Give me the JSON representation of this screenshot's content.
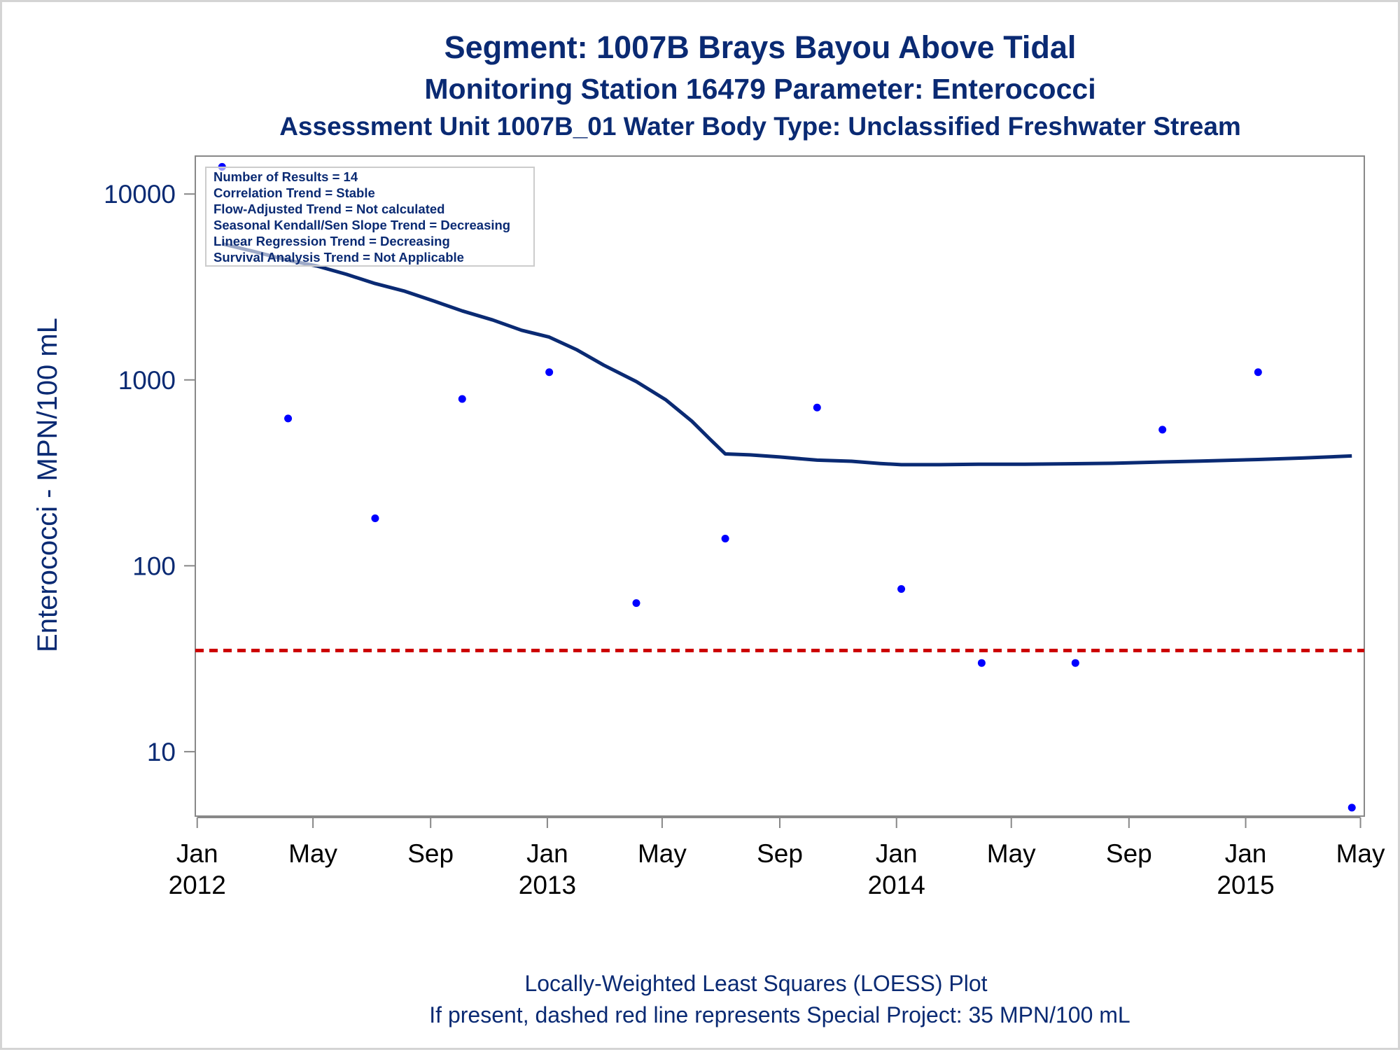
{
  "titles": [
    "Segment: 1007B  Brays Bayou Above Tidal",
    "Monitoring Station 16479 Parameter: Enterococci",
    "Assessment Unit 1007B_01   Water Body Type: Unclassified Freshwater Stream"
  ],
  "stats_box": [
    "Number of Results = 14",
    "Correlation Trend = Stable",
    "Flow-Adjusted Trend = Not calculated",
    "Seasonal Kendall/Sen Slope Trend = Decreasing",
    "Linear Regression Trend = Decreasing",
    "Survival Analysis Trend = Not Applicable"
  ],
  "footnotes": [
    "Locally-Weighted Least Squares (LOESS) Plot",
    "If present, dashed red line represents Special Project: 35 MPN/100 mL"
  ],
  "colors": {
    "title": "#0a2a73",
    "points": "#0000ff",
    "loess": "#0a2a73",
    "reference": "#cc0000",
    "axes": "#888888"
  },
  "chart_data": {
    "type": "scatter",
    "ylabel": "Enterococci - MPN/100 mL",
    "yscale": "log",
    "ylim": [
      4.5,
      16000
    ],
    "xlim": [
      "2011-12-30",
      "2015-05-05"
    ],
    "yticks": [
      {
        "value": 10,
        "label": "10"
      },
      {
        "value": 100,
        "label": "100"
      },
      {
        "value": 1000,
        "label": "1000"
      },
      {
        "value": 10000,
        "label": "10000"
      }
    ],
    "xticks": [
      {
        "date": "2012-01-01",
        "label": [
          "Jan",
          "2012"
        ]
      },
      {
        "date": "2012-05-01",
        "label": [
          "May"
        ]
      },
      {
        "date": "2012-09-01",
        "label": [
          "Sep"
        ]
      },
      {
        "date": "2013-01-01",
        "label": [
          "Jan",
          "2013"
        ]
      },
      {
        "date": "2013-05-01",
        "label": [
          "May"
        ]
      },
      {
        "date": "2013-09-01",
        "label": [
          "Sep"
        ]
      },
      {
        "date": "2014-01-01",
        "label": [
          "Jan",
          "2014"
        ]
      },
      {
        "date": "2014-05-01",
        "label": [
          "May"
        ]
      },
      {
        "date": "2014-09-01",
        "label": [
          "Sep"
        ]
      },
      {
        "date": "2015-01-01",
        "label": [
          "Jan",
          "2015"
        ]
      },
      {
        "date": "2015-05-01",
        "label": [
          "May"
        ]
      }
    ],
    "points": [
      {
        "date": "2012-01-27",
        "value": 14000
      },
      {
        "date": "2012-04-05",
        "value": 620
      },
      {
        "date": "2012-07-05",
        "value": 180
      },
      {
        "date": "2012-10-04",
        "value": 790
      },
      {
        "date": "2013-01-03",
        "value": 1100
      },
      {
        "date": "2013-04-04",
        "value": 63
      },
      {
        "date": "2013-07-06",
        "value": 140
      },
      {
        "date": "2013-10-10",
        "value": 710
      },
      {
        "date": "2014-01-06",
        "value": 75
      },
      {
        "date": "2014-03-31",
        "value": 30
      },
      {
        "date": "2014-07-07",
        "value": 30
      },
      {
        "date": "2014-10-06",
        "value": 540
      },
      {
        "date": "2015-01-14",
        "value": 1100
      },
      {
        "date": "2015-04-22",
        "value": 5
      }
    ],
    "loess": [
      {
        "date": "2012-01-27",
        "value": 5400
      },
      {
        "date": "2012-03-01",
        "value": 4900
      },
      {
        "date": "2012-04-05",
        "value": 4400
      },
      {
        "date": "2012-05-05",
        "value": 4100
      },
      {
        "date": "2012-06-05",
        "value": 3700
      },
      {
        "date": "2012-07-05",
        "value": 3300
      },
      {
        "date": "2012-08-05",
        "value": 3000
      },
      {
        "date": "2012-09-05",
        "value": 2650
      },
      {
        "date": "2012-10-04",
        "value": 2350
      },
      {
        "date": "2012-11-05",
        "value": 2100
      },
      {
        "date": "2012-12-05",
        "value": 1850
      },
      {
        "date": "2013-01-03",
        "value": 1700
      },
      {
        "date": "2013-02-01",
        "value": 1450
      },
      {
        "date": "2013-03-01",
        "value": 1200
      },
      {
        "date": "2013-04-04",
        "value": 980
      },
      {
        "date": "2013-05-05",
        "value": 780
      },
      {
        "date": "2013-06-01",
        "value": 600
      },
      {
        "date": "2013-06-20",
        "value": 480
      },
      {
        "date": "2013-07-06",
        "value": 400
      },
      {
        "date": "2013-08-01",
        "value": 395
      },
      {
        "date": "2013-09-01",
        "value": 385
      },
      {
        "date": "2013-10-10",
        "value": 370
      },
      {
        "date": "2013-11-15",
        "value": 365
      },
      {
        "date": "2013-12-15",
        "value": 355
      },
      {
        "date": "2014-01-06",
        "value": 350
      },
      {
        "date": "2014-02-15",
        "value": 350
      },
      {
        "date": "2014-03-31",
        "value": 352
      },
      {
        "date": "2014-05-15",
        "value": 352
      },
      {
        "date": "2014-07-07",
        "value": 354
      },
      {
        "date": "2014-08-15",
        "value": 356
      },
      {
        "date": "2014-10-06",
        "value": 362
      },
      {
        "date": "2014-11-15",
        "value": 366
      },
      {
        "date": "2015-01-14",
        "value": 373
      },
      {
        "date": "2015-03-01",
        "value": 380
      },
      {
        "date": "2015-04-22",
        "value": 390
      }
    ],
    "reference_line": {
      "value": 35,
      "label": "Special Project: 35 MPN/100 mL"
    },
    "grid": false
  }
}
